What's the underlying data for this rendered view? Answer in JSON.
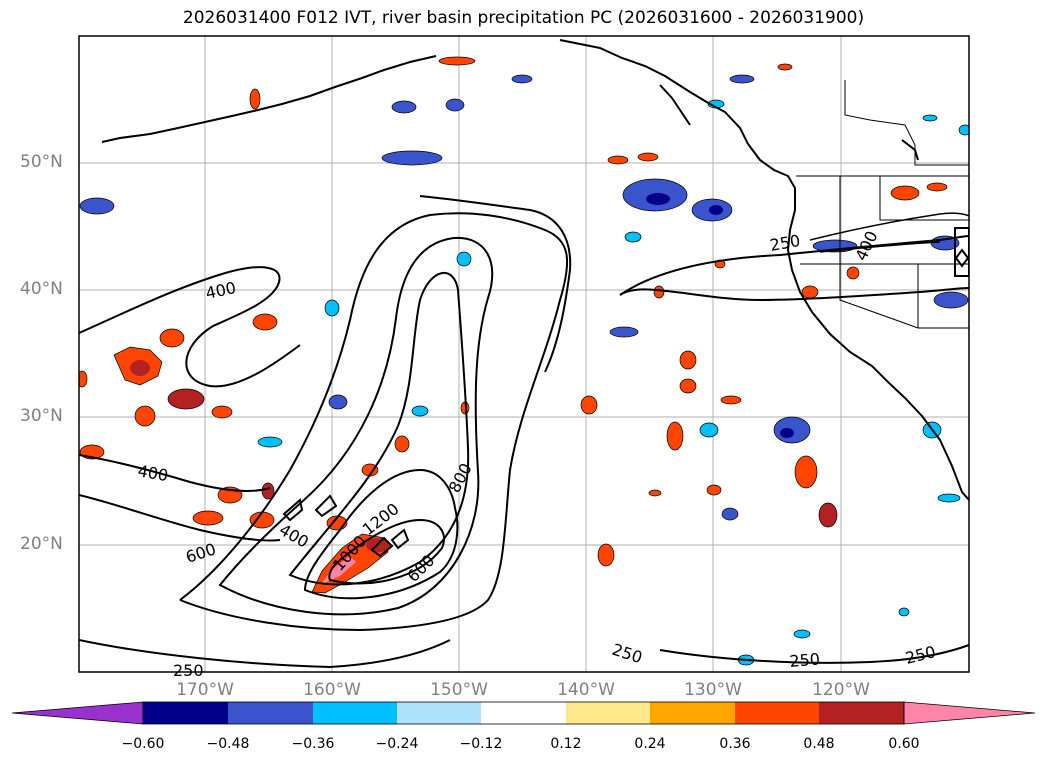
{
  "title": "2026031400 F012 IVT, river basin precipitation PC (2026031600 - 2026031900)",
  "map": {
    "lat_ticks": [
      "50°N",
      "40°N",
      "30°N",
      "20°N"
    ],
    "lon_ticks": [
      "170°W",
      "160°W",
      "150°W",
      "140°W",
      "130°W",
      "120°W"
    ],
    "gridlines": true,
    "ivt_contour_labels": [
      "400",
      "400",
      "400",
      "600",
      "1000",
      "1200",
      "800",
      "600",
      "250",
      "250",
      "250",
      "250",
      "250",
      "400"
    ]
  },
  "colorbar": {
    "tick_labels": [
      "−0.60",
      "−0.48",
      "−0.36",
      "−0.24",
      "−0.12",
      "0.12",
      "0.24",
      "0.36",
      "0.48",
      "0.60"
    ],
    "colors": [
      "#9932cc",
      "#00008b",
      "#3a54cc",
      "#00bfff",
      "#aee2fa",
      "#ffffff",
      "#ffe88c",
      "#ffa500",
      "#ff4500",
      "#b22222",
      "#ff85a8"
    ],
    "extend": "both"
  }
}
